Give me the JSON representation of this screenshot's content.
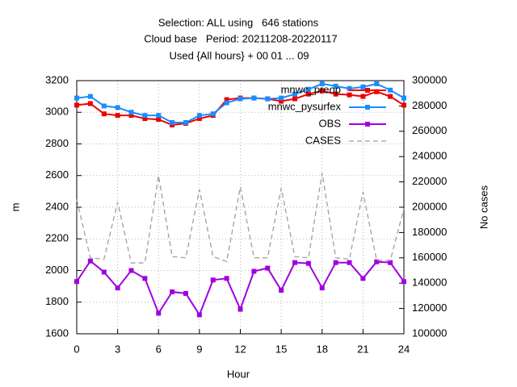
{
  "chart_data": {
    "type": "line",
    "title": [
      "Selection: ALL using   646 stations",
      "Cloud base   Period: 20211208-20220117",
      "Used {All hours} + 00 01 ... 09"
    ],
    "x_label": "Hour",
    "y_label": "m",
    "y2_label": "No cases",
    "x": [
      0,
      1,
      2,
      3,
      4,
      5,
      6,
      7,
      8,
      9,
      10,
      11,
      12,
      13,
      14,
      15,
      16,
      17,
      18,
      19,
      20,
      21,
      22,
      23,
      24
    ],
    "xlim": [
      0,
      24
    ],
    "xticks": [
      0,
      3,
      6,
      9,
      12,
      15,
      18,
      21,
      24
    ],
    "ylim": [
      1600,
      3200
    ],
    "yticks": [
      1600,
      1800,
      2000,
      2200,
      2400,
      2600,
      2800,
      3000,
      3200
    ],
    "y2lim": [
      100000,
      300000
    ],
    "y2ticks": [
      100000,
      120000,
      140000,
      160000,
      180000,
      200000,
      220000,
      240000,
      260000,
      280000,
      300000
    ],
    "grid": true,
    "legend": "top-right",
    "series": [
      {
        "name": "mnwc_preop",
        "color": "#ee0000",
        "marker": "square",
        "values": [
          3045,
          3055,
          2990,
          2980,
          2980,
          2960,
          2955,
          2920,
          2930,
          2960,
          2980,
          3080,
          3090,
          3090,
          3085,
          3070,
          3085,
          3115,
          3135,
          3115,
          3110,
          3100,
          3130,
          3100,
          3045
        ]
      },
      {
        "name": "mnwc_pysurfex",
        "color": "#1a8cff",
        "marker": "square",
        "values": [
          3090,
          3100,
          3040,
          3030,
          3000,
          2980,
          2980,
          2935,
          2935,
          2980,
          2990,
          3060,
          3085,
          3090,
          3085,
          3090,
          3115,
          3145,
          3180,
          3165,
          3150,
          3160,
          3180,
          3140,
          3090
        ]
      },
      {
        "name": "OBS",
        "color": "#a000e0",
        "marker": "square",
        "values": [
          1930,
          2060,
          1990,
          1890,
          2000,
          1950,
          1730,
          1865,
          1855,
          1720,
          1940,
          1950,
          1755,
          1995,
          2015,
          1875,
          2050,
          2045,
          1890,
          2050,
          2050,
          1950,
          2055,
          2050,
          1930
        ]
      },
      {
        "name": "CASES",
        "color": "#a0a0a0",
        "dashed": true,
        "axis": "y2",
        "values": [
          206000,
          160000,
          159000,
          204000,
          156000,
          156000,
          225000,
          161000,
          160000,
          214000,
          161000,
          157000,
          216000,
          160000,
          160000,
          215000,
          161000,
          160000,
          227000,
          160000,
          159000,
          212000,
          158000,
          158000,
          199000
        ]
      }
    ]
  }
}
